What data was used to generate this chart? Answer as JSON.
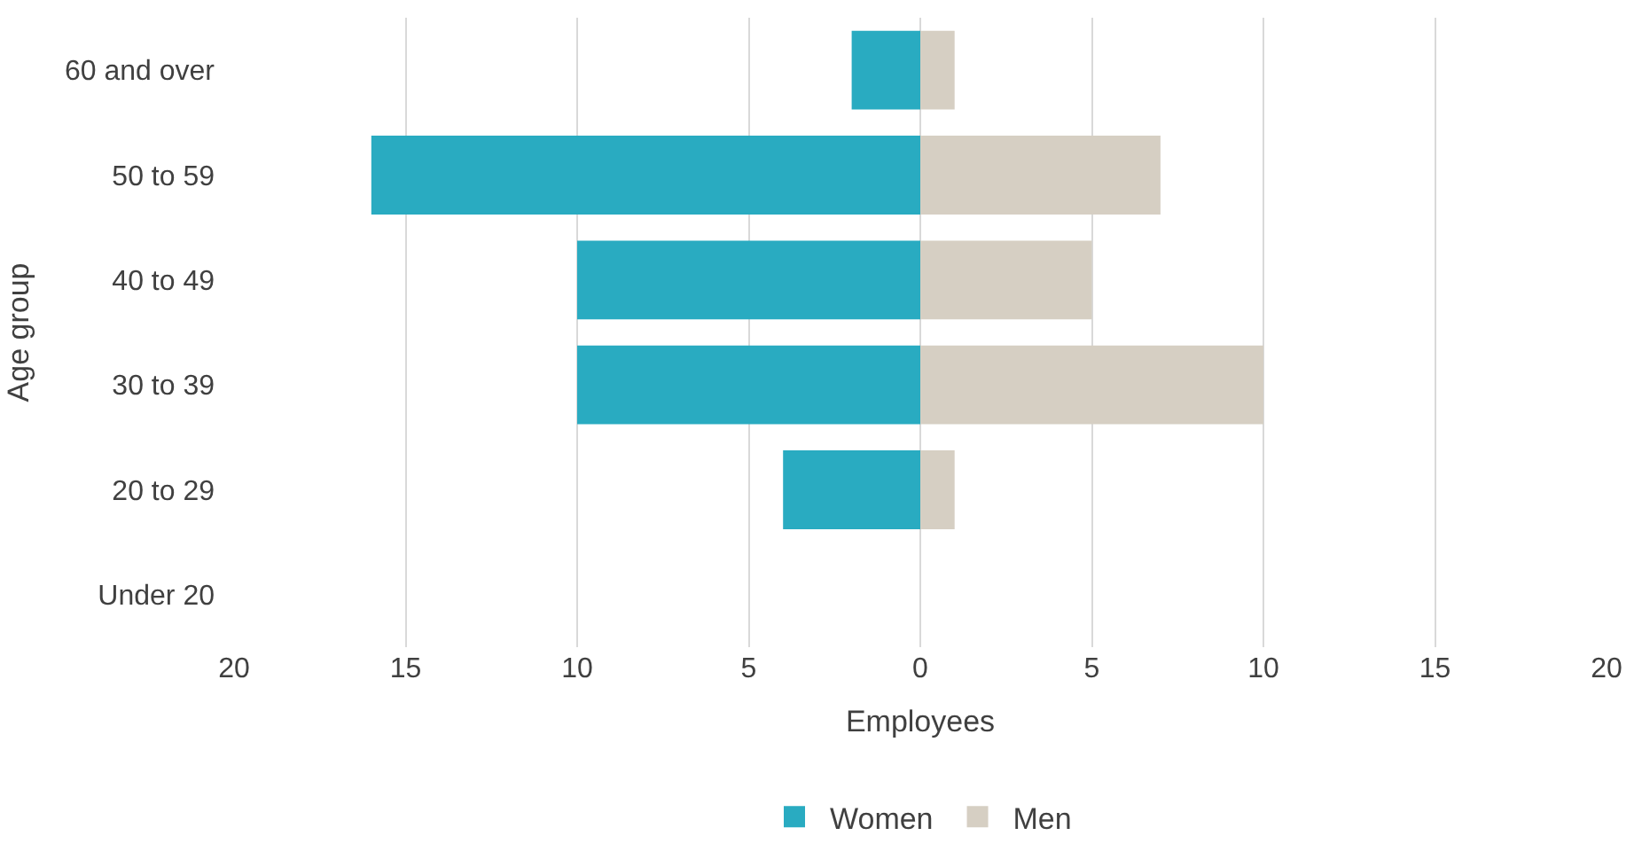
{
  "chart_data": {
    "type": "bar",
    "orientation": "horizontal",
    "xlabel": "Employees",
    "ylabel": "Age group",
    "categories": [
      "60 and over",
      "50 to 59",
      "40 to 49",
      "30 to 39",
      "20 to 29",
      "Under 20"
    ],
    "series": [
      {
        "name": "Women",
        "color": "#29abc1",
        "values": [
          -2,
          -16,
          -10,
          -10,
          -4,
          0
        ]
      },
      {
        "name": "Men",
        "color": "#d6cfc3",
        "values": [
          1,
          7,
          5,
          10,
          1,
          0
        ]
      }
    ],
    "xlim": [
      -20,
      20
    ],
    "xticks": [
      {
        "value": -20,
        "label": "20"
      },
      {
        "value": -15,
        "label": "15"
      },
      {
        "value": -10,
        "label": "10"
      },
      {
        "value": -5,
        "label": "5"
      },
      0,
      5,
      10,
      15,
      20
    ],
    "grid": "x",
    "legend": "bottom",
    "stacked": true
  }
}
